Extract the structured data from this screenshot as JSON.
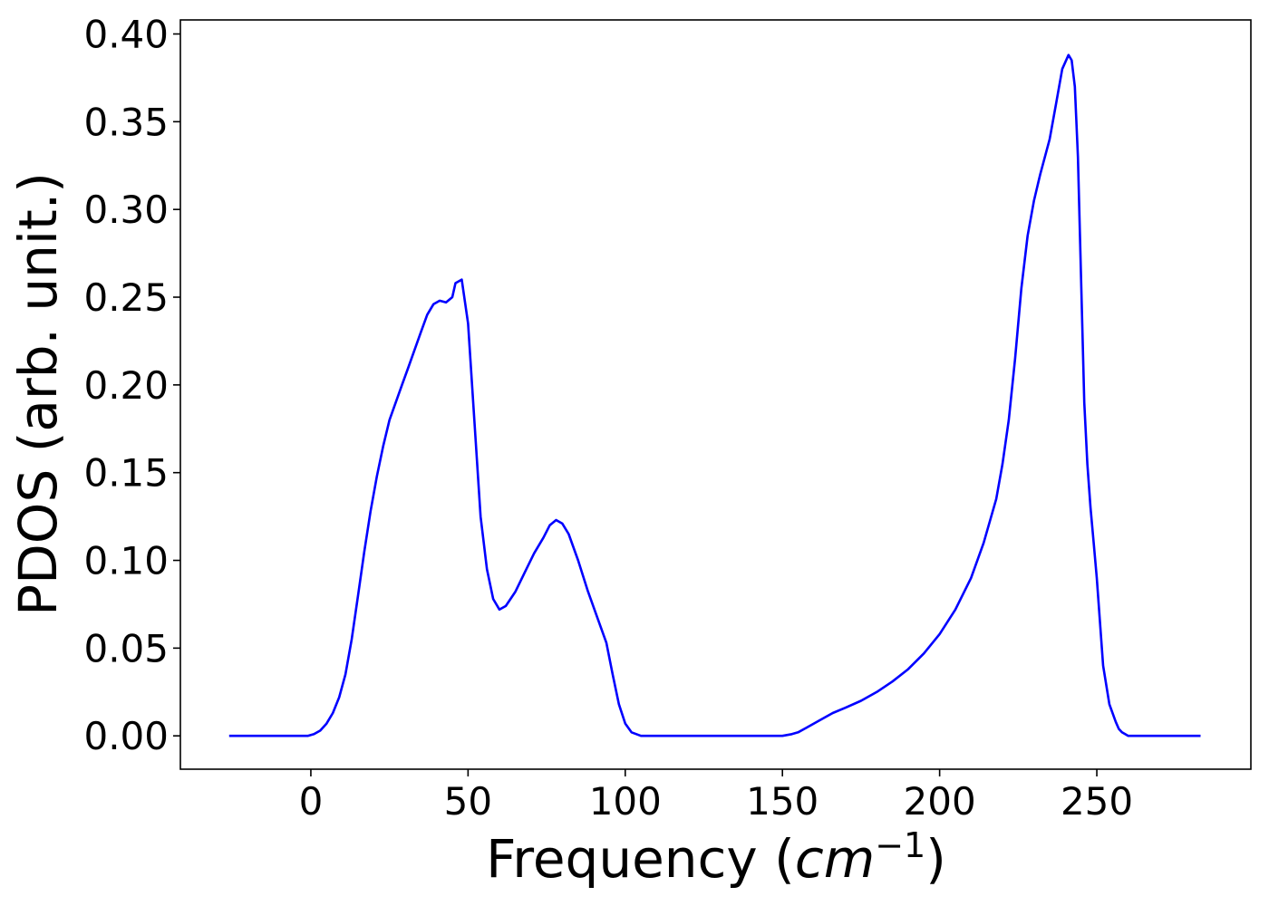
{
  "chart_data": {
    "type": "line",
    "title": "",
    "xlabel": "Frequency",
    "xlabel_unit": "cm",
    "xlabel_unit_exponent": "−1",
    "ylabel": "PDOS (arb. unit.)",
    "xlim": [
      -41.5,
      299
    ],
    "ylim": [
      -0.019,
      0.408
    ],
    "x_ticks": [
      0,
      50,
      100,
      150,
      200,
      250
    ],
    "x_tick_labels": [
      "0",
      "50",
      "100",
      "150",
      "200",
      "250"
    ],
    "y_ticks": [
      0.0,
      0.05,
      0.1,
      0.15,
      0.2,
      0.25,
      0.3,
      0.35,
      0.4
    ],
    "y_tick_labels": [
      "0.00",
      "0.05",
      "0.10",
      "0.15",
      "0.20",
      "0.25",
      "0.30",
      "0.35",
      "0.40"
    ],
    "grid": false,
    "legend": "none",
    "series": [
      {
        "color": "#0000ff",
        "x": [
          -26,
          -15,
          -5,
          -1,
          1,
          3,
          5,
          7,
          9,
          11,
          13,
          15,
          17,
          19,
          21,
          23,
          25,
          27,
          29,
          31,
          33,
          35,
          37,
          39,
          41,
          43,
          45,
          46,
          48,
          50,
          52,
          54,
          56,
          58,
          60,
          62,
          65,
          68,
          71,
          74,
          76,
          78,
          80,
          82,
          85,
          88,
          91,
          94,
          96,
          98,
          100,
          102,
          105,
          110,
          120,
          130,
          140,
          150,
          153,
          155,
          158,
          162,
          166,
          170,
          175,
          180,
          185,
          190,
          195,
          200,
          205,
          210,
          214,
          218,
          220,
          222,
          224,
          226,
          228,
          230,
          232,
          235,
          237,
          239,
          241,
          242,
          243,
          244,
          245,
          246,
          247,
          248,
          249,
          250,
          252,
          254,
          256,
          257,
          258,
          259,
          260,
          261,
          262,
          263,
          265,
          268,
          272,
          283
        ],
        "y": [
          0.0,
          0.0,
          0.0,
          0.0,
          0.001,
          0.003,
          0.007,
          0.013,
          0.022,
          0.035,
          0.055,
          0.08,
          0.105,
          0.128,
          0.148,
          0.165,
          0.18,
          0.19,
          0.2,
          0.21,
          0.22,
          0.23,
          0.24,
          0.246,
          0.248,
          0.247,
          0.25,
          0.258,
          0.26,
          0.235,
          0.18,
          0.125,
          0.095,
          0.078,
          0.072,
          0.074,
          0.082,
          0.093,
          0.104,
          0.113,
          0.12,
          0.123,
          0.121,
          0.115,
          0.1,
          0.083,
          0.068,
          0.053,
          0.035,
          0.018,
          0.007,
          0.002,
          0.0,
          0.0,
          0.0,
          0.0,
          0.0,
          0.0,
          0.001,
          0.002,
          0.005,
          0.009,
          0.013,
          0.016,
          0.02,
          0.025,
          0.031,
          0.038,
          0.047,
          0.058,
          0.072,
          0.09,
          0.11,
          0.135,
          0.155,
          0.18,
          0.215,
          0.255,
          0.285,
          0.305,
          0.32,
          0.34,
          0.36,
          0.38,
          0.388,
          0.385,
          0.37,
          0.33,
          0.26,
          0.19,
          0.155,
          0.13,
          0.11,
          0.09,
          0.04,
          0.018,
          0.008,
          0.004,
          0.002,
          0.001,
          0.0,
          0.0,
          0.0,
          0.0,
          0.0,
          0.0,
          0.0,
          0.0
        ]
      }
    ]
  }
}
